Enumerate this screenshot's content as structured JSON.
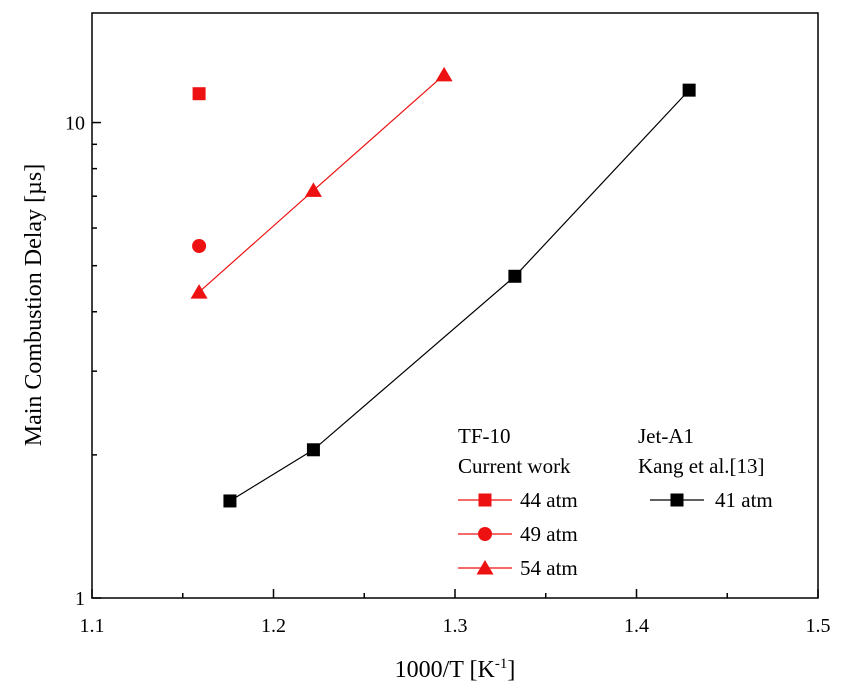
{
  "chart_data": {
    "type": "line",
    "title": "",
    "xlabel": "1000/T [K",
    "xlabel_sup": "-1",
    "xlabel_end": "]",
    "ylabel": "Main Combustion Delay [µs]",
    "xlim": [
      1.1,
      1.5
    ],
    "ylim": [
      1,
      17
    ],
    "y_scale": "log",
    "x_ticks": [
      "1.1",
      "1.2",
      "1.3",
      "1.4",
      "1.5"
    ],
    "y_ticks": [
      "1",
      "10"
    ],
    "grid": false,
    "legend_placement": "bottom-right",
    "legend_groups": [
      {
        "title": "TF-10",
        "subtitle": "Current work"
      },
      {
        "title": "Jet-A1",
        "subtitle": "Kang et al.[13]"
      }
    ],
    "series": [
      {
        "name": "44 atm",
        "group": 0,
        "marker": "square",
        "color": "#ee1111",
        "line": false,
        "x": [
          1.159
        ],
        "y": [
          11.5
        ]
      },
      {
        "name": "49 atm",
        "group": 0,
        "marker": "circle",
        "color": "#ee1111",
        "line": false,
        "x": [
          1.159
        ],
        "y": [
          5.5
        ]
      },
      {
        "name": "54 atm",
        "group": 0,
        "marker": "triangle",
        "color": "#ee1111",
        "line": true,
        "x": [
          1.159,
          1.222,
          1.294
        ],
        "y": [
          4.4,
          7.2,
          12.6
        ]
      },
      {
        "name": "41 atm",
        "group": 1,
        "marker": "square",
        "color": "#000000",
        "line": true,
        "x": [
          1.176,
          1.222,
          1.333,
          1.429
        ],
        "y": [
          1.6,
          2.05,
          4.75,
          11.7
        ]
      }
    ]
  }
}
